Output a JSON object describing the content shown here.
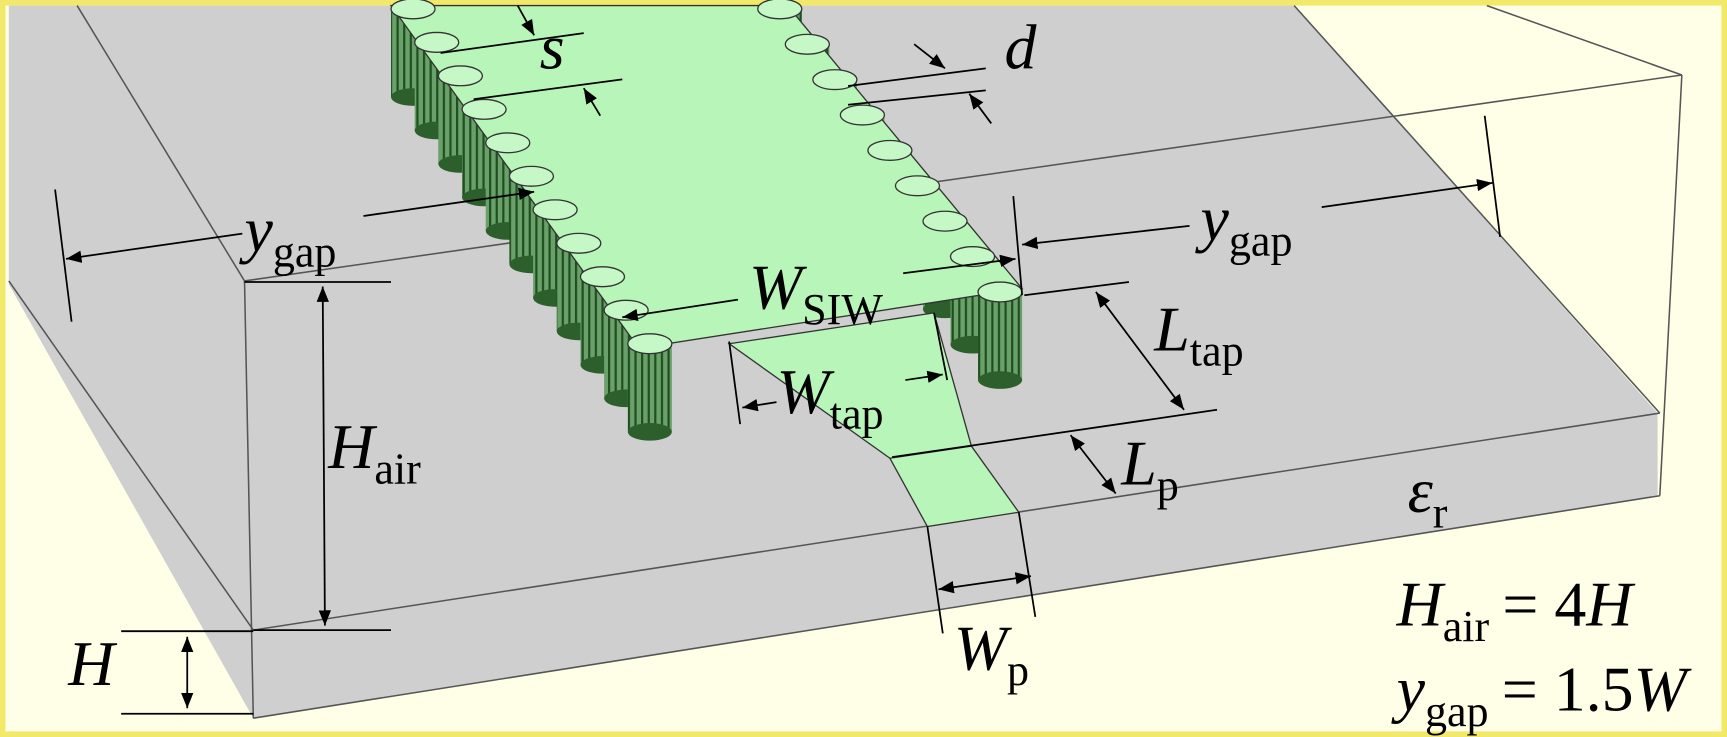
{
  "labels": [
    {
      "main": "s"
    },
    {
      "main": "d"
    },
    {
      "main": "y",
      "sub": "gap"
    },
    {
      "main": "y",
      "sub": "gap"
    },
    {
      "main": "W",
      "sub": "SIW"
    },
    {
      "main": "L",
      "sub": "tap"
    },
    {
      "main": "W",
      "sub": "tap"
    },
    {
      "main": "H",
      "sub": "air"
    },
    {
      "main": "L",
      "sub": "p"
    },
    {
      "main": "ε",
      "sub": "r"
    },
    {
      "main": "W",
      "sub": "p"
    },
    {
      "main": "H"
    }
  ],
  "equations": [
    {
      "main": "H",
      "sub": "air",
      "op": "= 4",
      "var": "H"
    },
    {
      "main": "y",
      "sub": "gap",
      "op": "= 1.5",
      "var": "W"
    }
  ]
}
